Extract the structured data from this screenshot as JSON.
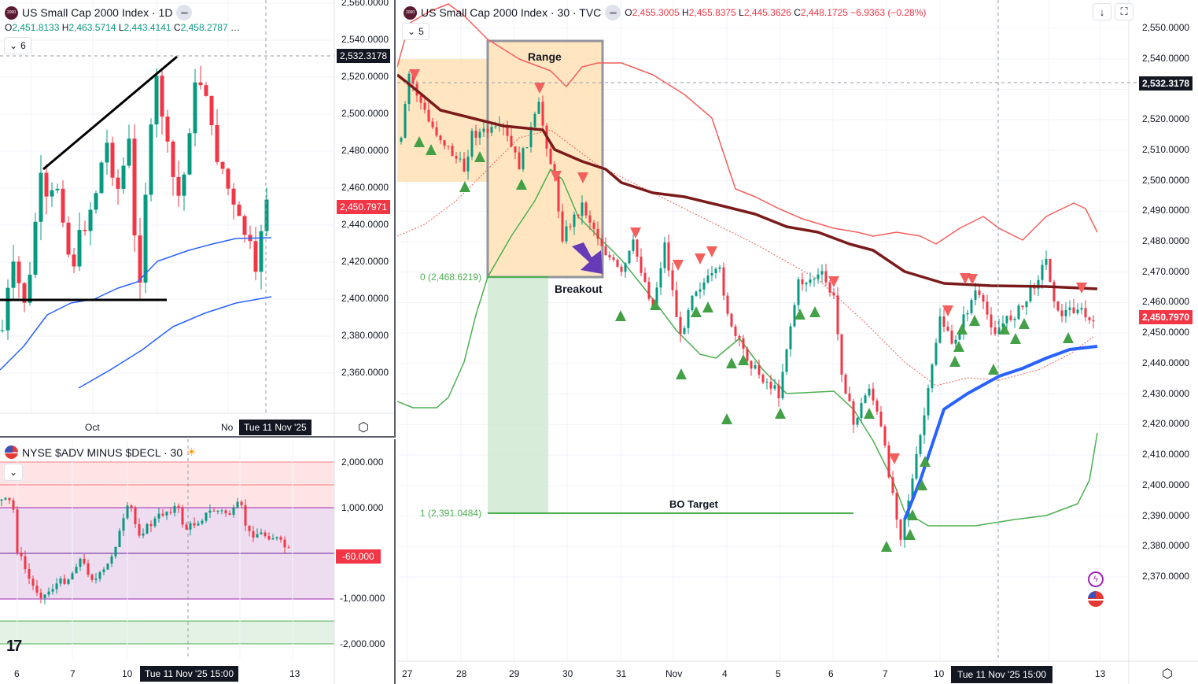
{
  "left_top": {
    "symbol": "US Small Cap 2000 Index · 1D",
    "logo_text": "2000",
    "ohlc": {
      "o_label": "O",
      "o": "2,451.8133",
      "h_label": "H",
      "h": "2,463.5714",
      "l_label": "L",
      "l": "2,443.4141",
      "c_label": "C",
      "c": "2,458.2787",
      "more": "…"
    },
    "collapse_count": "6",
    "price_axis": [
      "2,560.0000",
      "2,540.0000",
      "2,520.0000",
      "2,500.0000",
      "2,480.0000",
      "2,460.0000",
      "2,440.0000",
      "2,420.0000",
      "2,400.0000",
      "2,380.0000",
      "2,360.0000"
    ],
    "crosshair_price": "2,532.3178",
    "last_price": "2,450.7971",
    "time_axis": [
      "Oct",
      "No"
    ],
    "crosshair_time": "Tue 11 Nov '25"
  },
  "left_bottom": {
    "symbol": "NYSE $ADV MINUS $DECL · 30",
    "price_axis": [
      "2,000.000",
      "1,000.000",
      "-1,000.000",
      "-2,000.000"
    ],
    "last_value": "-60.000",
    "time_axis": [
      "6",
      "7",
      "10",
      "2",
      "13"
    ],
    "crosshair_time": "Tue 11 Nov '25  15:00",
    "watermark": "TV"
  },
  "main": {
    "symbol": "US Small Cap 2000 Index · 30 · TVC",
    "logo_text": "2000",
    "ohlc": {
      "o_label": "O",
      "o": "2,455.3005",
      "h_label": "H",
      "h": "2,455.8375",
      "l_label": "L",
      "l": "2,445.3626",
      "c_label": "C",
      "c": "2,448.1725",
      "change": "−6.9363 (−0.28%)"
    },
    "collapse_count": "5",
    "price_axis": [
      "2,550.0000",
      "2,540.0000",
      "2,530.0000",
      "2,520.0000",
      "2,510.0000",
      "2,500.0000",
      "2,490.0000",
      "2,480.0000",
      "2,470.0000",
      "2,460.0000",
      "2,450.0000",
      "2,440.0000",
      "2,430.0000",
      "2,420.0000",
      "2,410.0000",
      "2,400.0000",
      "2,390.0000",
      "2,380.0000",
      "2,370.0000"
    ],
    "crosshair_price": "2,532.3178",
    "last_price": "2,450.7970",
    "time_axis": [
      "27",
      "28",
      "29",
      "30",
      "31",
      "Nov",
      "4",
      "5",
      "6",
      "7",
      "10",
      "13"
    ],
    "crosshair_time": "Tue 11 Nov '25   15:00",
    "annotations": {
      "range": "Range",
      "breakout": "Breakout",
      "bo_target": "BO Target",
      "level0": "0 (2,468.6219)",
      "level1": "1 (2,391.0484)"
    },
    "buttons": {
      "down": "↓",
      "fullscreen": "⛶"
    }
  },
  "colors": {
    "up": "#089981",
    "down": "#f23645",
    "signal_up": "#43a047",
    "signal_down": "#f25f5c",
    "ma": "#7b1a1a",
    "blue": "#2962ff",
    "range_fill": "#ffe0b2",
    "target_fill": "#c8e6c9"
  }
}
